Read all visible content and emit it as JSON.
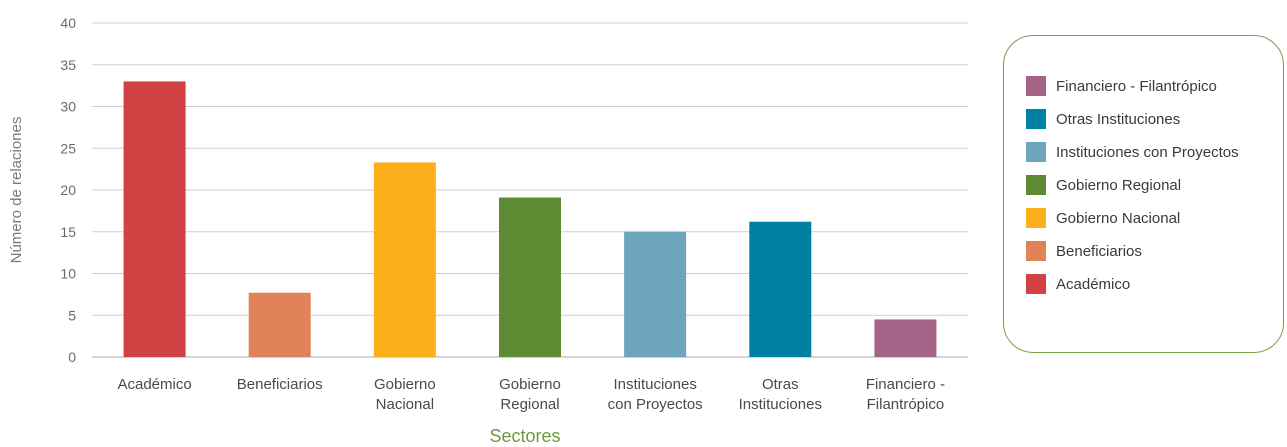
{
  "chart_data": {
    "type": "bar",
    "xlabel": "Sectores",
    "ylabel": "Número de relaciones",
    "ylim": [
      0,
      40
    ],
    "yticks": [
      0,
      5,
      10,
      15,
      20,
      25,
      30,
      35,
      40
    ],
    "grid": true,
    "legend_position": "right",
    "categories": [
      {
        "label": [
          "Académico"
        ],
        "value": 33,
        "color": "#d14244"
      },
      {
        "label": [
          "Beneficiarios"
        ],
        "value": 7.7,
        "color": "#e0825a"
      },
      {
        "label": [
          "Gobierno",
          "Nacional"
        ],
        "value": 23.3,
        "color": "#fbaf1a"
      },
      {
        "label": [
          "Gobierno",
          "Regional"
        ],
        "value": 19.1,
        "color": "#5e8a33"
      },
      {
        "label": [
          "Instituciones",
          "con Proyectos"
        ],
        "value": 15,
        "color": "#6ca5bd"
      },
      {
        "label": [
          "Otras",
          "Instituciones"
        ],
        "value": 16.2,
        "color": "#0080a3"
      },
      {
        "label": [
          "Financiero -",
          "Filantrópico"
        ],
        "value": 4.5,
        "color": "#a46387"
      }
    ],
    "legend": [
      {
        "name": "Financiero - Filantrópico",
        "color": "#a46387"
      },
      {
        "name": "Otras Instituciones",
        "color": "#0080a3"
      },
      {
        "name": "Instituciones con Proyectos",
        "color": "#6ca5bd"
      },
      {
        "name": "Gobierno Regional",
        "color": "#5e8a33"
      },
      {
        "name": "Gobierno Nacional",
        "color": "#fbaf1a"
      },
      {
        "name": "Beneficiarios",
        "color": "#e0825a"
      },
      {
        "name": "Académico",
        "color": "#d14244"
      }
    ]
  }
}
